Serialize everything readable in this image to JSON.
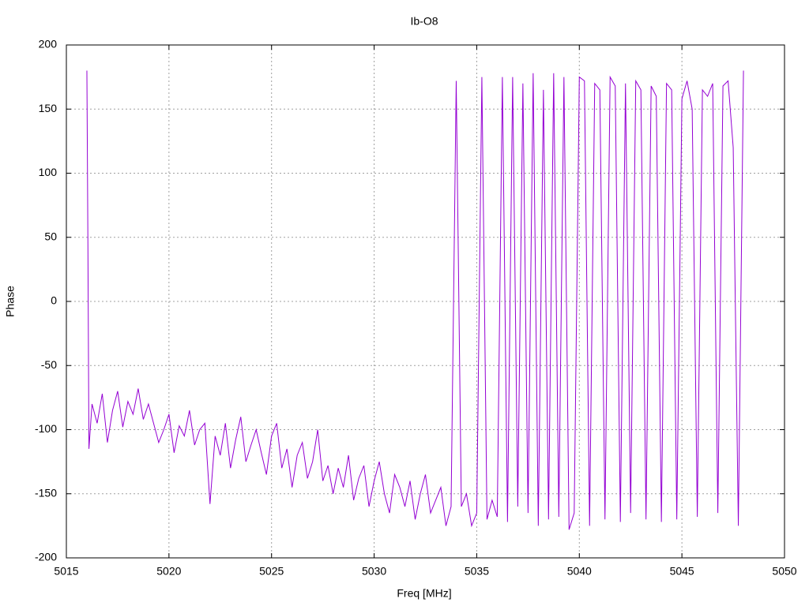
{
  "chart_data": {
    "type": "line",
    "title": "Ib-O8",
    "x_label": "Freq [MHz]",
    "y_label": "Phase",
    "xlim": [
      5015,
      5050
    ],
    "xticks": [
      5015,
      5020,
      5025,
      5030,
      5035,
      5040,
      5045,
      5050
    ],
    "ylim": [
      -200,
      200
    ],
    "yticks": [
      -200,
      -150,
      -100,
      -50,
      0,
      50,
      100,
      150,
      200
    ],
    "grid": true,
    "x": [
      5016.0,
      5016.05,
      5016.1,
      5016.25,
      5016.5,
      5016.75,
      5017.0,
      5017.25,
      5017.5,
      5017.75,
      5018.0,
      5018.25,
      5018.5,
      5018.75,
      5019.0,
      5019.25,
      5019.5,
      5019.75,
      5020.0,
      5020.25,
      5020.5,
      5020.75,
      5021.0,
      5021.25,
      5021.5,
      5021.75,
      5022.0,
      5022.25,
      5022.5,
      5022.75,
      5023.0,
      5023.25,
      5023.5,
      5023.75,
      5024.0,
      5024.25,
      5024.5,
      5024.75,
      5025.0,
      5025.25,
      5025.5,
      5025.75,
      5026.0,
      5026.25,
      5026.5,
      5026.75,
      5027.0,
      5027.25,
      5027.5,
      5027.75,
      5028.0,
      5028.25,
      5028.5,
      5028.75,
      5029.0,
      5029.25,
      5029.5,
      5029.75,
      5030.0,
      5030.25,
      5030.5,
      5030.75,
      5031.0,
      5031.25,
      5031.5,
      5031.75,
      5032.0,
      5032.25,
      5032.5,
      5032.75,
      5033.0,
      5033.25,
      5033.5,
      5033.75,
      5034.0,
      5034.25,
      5034.5,
      5034.75,
      5035.0,
      5035.25,
      5035.5,
      5035.75,
      5036.0,
      5036.25,
      5036.5,
      5036.75,
      5037.0,
      5037.25,
      5037.5,
      5037.75,
      5038.0,
      5038.25,
      5038.5,
      5038.75,
      5039.0,
      5039.25,
      5039.5,
      5039.75,
      5040.0,
      5040.25,
      5040.5,
      5040.75,
      5041.0,
      5041.25,
      5041.5,
      5041.75,
      5042.0,
      5042.25,
      5042.5,
      5042.75,
      5043.0,
      5043.25,
      5043.5,
      5043.75,
      5044.0,
      5044.25,
      5044.5,
      5044.75,
      5045.0,
      5045.25,
      5045.5,
      5045.75,
      5046.0,
      5046.25,
      5046.5,
      5046.75,
      5047.0,
      5047.25,
      5047.5,
      5047.75,
      5048.0
    ],
    "series": [
      {
        "name": "Phase",
        "color": "#9400d3",
        "values": [
          180,
          45,
          -115,
          -80,
          -95,
          -72,
          -110,
          -85,
          -70,
          -98,
          -78,
          -88,
          -68,
          -92,
          -80,
          -95,
          -110,
          -100,
          -88,
          -118,
          -97,
          -105,
          -85,
          -112,
          -100,
          -95,
          -158,
          -105,
          -120,
          -95,
          -130,
          -108,
          -90,
          -125,
          -112,
          -100,
          -118,
          -135,
          -105,
          -95,
          -130,
          -115,
          -145,
          -120,
          -110,
          -138,
          -125,
          -100,
          -140,
          -128,
          -150,
          -130,
          -145,
          -120,
          -155,
          -138,
          -128,
          -160,
          -140,
          -125,
          -150,
          -165,
          -135,
          -145,
          -160,
          -140,
          -170,
          -150,
          -135,
          -165,
          -155,
          -145,
          -175,
          -160,
          172,
          -160,
          -150,
          -175,
          -165,
          175,
          -170,
          -155,
          -168,
          175,
          -172,
          175,
          -160,
          170,
          -165,
          178,
          -175,
          165,
          -170,
          178,
          -168,
          175,
          -178,
          -165,
          175,
          172,
          -175,
          170,
          165,
          -170,
          175,
          168,
          -172,
          170,
          -165,
          172,
          165,
          -170,
          168,
          160,
          -172,
          170,
          165,
          -170,
          158,
          172,
          150,
          -168,
          165,
          160,
          170,
          -165,
          168,
          172,
          120,
          -175,
          180
        ]
      }
    ]
  }
}
